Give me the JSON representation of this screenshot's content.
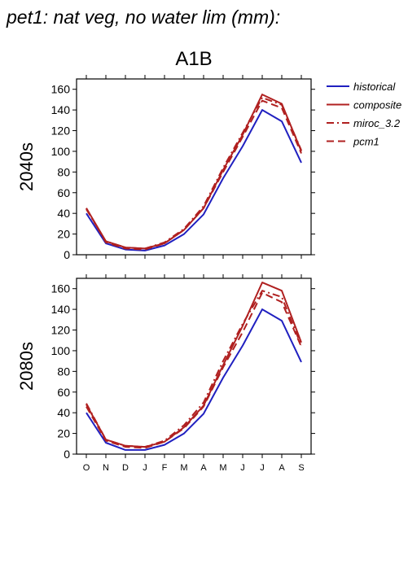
{
  "figure_title": "pet1: nat veg, no water lim (mm):",
  "scenario_title": "A1B",
  "chart_data": [
    {
      "type": "line",
      "panel_label": "2040s",
      "categories": [
        "O",
        "N",
        "D",
        "J",
        "F",
        "M",
        "A",
        "M",
        "J",
        "J",
        "A",
        "S"
      ],
      "ylim": [
        0,
        170
      ],
      "yticks": [
        0,
        20,
        40,
        60,
        80,
        100,
        120,
        140,
        160
      ],
      "series": [
        {
          "name": "historical",
          "color": "#2020c0",
          "dash": "solid",
          "values": [
            40,
            11,
            5,
            4,
            9,
            20,
            39,
            74,
            105,
            140,
            129,
            89
          ]
        },
        {
          "name": "composite",
          "color": "#b02020",
          "dash": "solid",
          "values": [
            45,
            13,
            7,
            6,
            11,
            24,
            45,
            82,
            116,
            155,
            146,
            100
          ]
        },
        {
          "name": "miroc_3.2",
          "color": "#b02020",
          "dash": "dashdot",
          "values": [
            44,
            13,
            7,
            6,
            12,
            25,
            47,
            84,
            118,
            152,
            145,
            101
          ]
        },
        {
          "name": "pcm1",
          "color": "#b02020",
          "dash": "dashed",
          "values": [
            45,
            12,
            6,
            5,
            11,
            24,
            45,
            80,
            114,
            149,
            142,
            98
          ]
        }
      ]
    },
    {
      "type": "line",
      "panel_label": "2080s",
      "categories": [
        "O",
        "N",
        "D",
        "J",
        "F",
        "M",
        "A",
        "M",
        "J",
        "J",
        "A",
        "S"
      ],
      "ylim": [
        0,
        170
      ],
      "yticks": [
        0,
        20,
        40,
        60,
        80,
        100,
        120,
        140,
        160
      ],
      "series": [
        {
          "name": "historical",
          "color": "#2020c0",
          "dash": "solid",
          "values": [
            40,
            11,
            4,
            4,
            9,
            20,
            39,
            74,
            105,
            140,
            129,
            89
          ]
        },
        {
          "name": "composite",
          "color": "#b02020",
          "dash": "solid",
          "values": [
            48,
            14,
            8,
            7,
            12,
            26,
            47,
            86,
            124,
            166,
            158,
            108
          ]
        },
        {
          "name": "miroc_3.2",
          "color": "#b02020",
          "dash": "dashdot",
          "values": [
            49,
            14,
            8,
            7,
            13,
            28,
            50,
            90,
            126,
            158,
            152,
            105
          ]
        },
        {
          "name": "pcm1",
          "color": "#b02020",
          "dash": "dashed",
          "values": [
            46,
            13,
            7,
            6,
            12,
            25,
            46,
            84,
            118,
            156,
            147,
            104
          ]
        }
      ]
    }
  ]
}
